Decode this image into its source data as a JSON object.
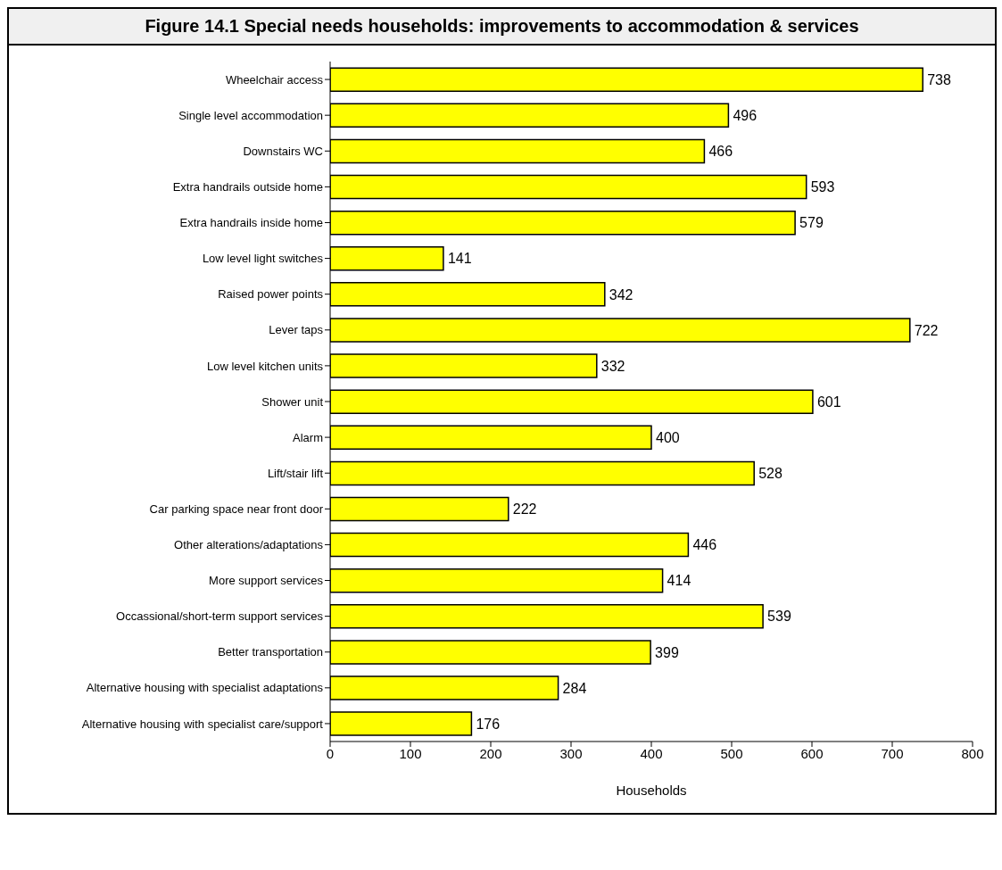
{
  "chart_data": {
    "type": "bar",
    "orientation": "horizontal",
    "title": "Figure 14.1 Special needs households: improvements to accommodation & services",
    "xlabel": "Households",
    "categories": [
      "Wheelchair access",
      "Single level accommodation",
      "Downstairs WC",
      "Extra handrails outside home",
      "Extra handrails inside home",
      "Low level light switches",
      "Raised power points",
      "Lever taps",
      "Low level kitchen units",
      "Shower unit",
      "Alarm",
      "Lift/stair lift",
      "Car parking space near front door",
      "Other alterations/adaptations",
      "More support services",
      "Occassional/short-term support services",
      "Better transportation",
      "Alternative housing with specialist adaptations",
      "Alternative housing with specialist care/support"
    ],
    "values": [
      738,
      496,
      466,
      593,
      579,
      141,
      342,
      722,
      332,
      601,
      400,
      528,
      222,
      446,
      414,
      539,
      399,
      284,
      176
    ],
    "color": "#ffff00",
    "xlim": [
      0,
      800
    ],
    "xticks": [
      0,
      100,
      200,
      300,
      400,
      500,
      600,
      700,
      800
    ],
    "data_labels": true,
    "grid": false,
    "legend": false
  }
}
